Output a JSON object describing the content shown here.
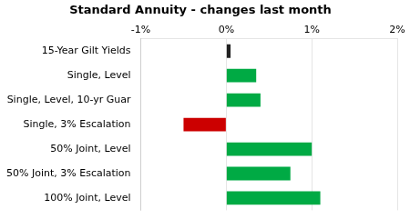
{
  "chart_data": {
    "type": "bar",
    "orientation": "horizontal",
    "title": "Standard Annuity - changes last month",
    "categories": [
      "100% Joint, Level",
      "50% Joint, 3% Escalation",
      "50% Joint, Level",
      "Single, 3% Escalation",
      "Single, Level, 10-yr Guar",
      "Single, Level",
      "15-Year Gilt Yields"
    ],
    "values": [
      1.1,
      0.75,
      1.0,
      -0.5,
      0.4,
      0.35,
      0.05
    ],
    "colors": [
      "#00aa44",
      "#00aa44",
      "#00aa44",
      "#cc0000",
      "#00aa44",
      "#00aa44",
      "#222222"
    ],
    "xlim": [
      -1.0,
      2.0
    ],
    "xticks": [
      {
        "value": -1.0,
        "label": "-1%"
      },
      {
        "value": 0.0,
        "label": "0%"
      },
      {
        "value": 1.0,
        "label": "1%"
      },
      {
        "value": 2.0,
        "label": "2%"
      }
    ],
    "grid": true
  }
}
